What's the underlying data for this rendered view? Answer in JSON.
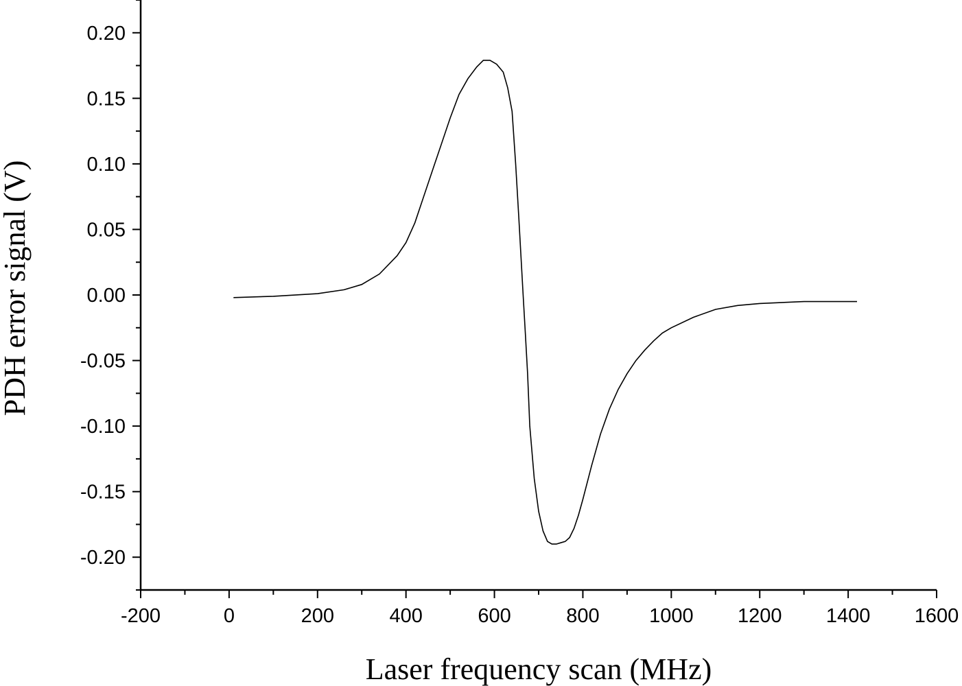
{
  "chart_data": {
    "type": "line",
    "title": "",
    "xlabel": "Laser frequency scan (MHz)",
    "ylabel": "PDH error signal (V)",
    "xlim": [
      -200,
      1600
    ],
    "ylim": [
      -0.225,
      0.225
    ],
    "x_ticks": [
      -200,
      0,
      200,
      400,
      600,
      800,
      1000,
      1200,
      1400,
      1600
    ],
    "x_tick_labels": [
      "-200",
      "0",
      "200",
      "400",
      "600",
      "800",
      "1000",
      "1200",
      "1400",
      "1600"
    ],
    "y_ticks": [
      -0.2,
      -0.15,
      -0.1,
      -0.05,
      0.0,
      0.05,
      0.1,
      0.15,
      0.2
    ],
    "y_tick_labels": [
      "-0.20",
      "-0.15",
      "-0.10",
      "-0.05",
      "0.00",
      "0.05",
      "0.10",
      "0.15",
      "0.20"
    ],
    "grid": false,
    "legend": false,
    "line_color": "#000000",
    "series": [
      {
        "x": [
          10,
          100,
          200,
          260,
          300,
          340,
          380,
          400,
          420,
          440,
          460,
          480,
          500,
          520,
          540,
          560,
          575,
          590,
          605,
          620,
          630,
          640,
          648,
          655,
          660,
          665,
          670,
          675,
          680,
          690,
          700,
          710,
          720,
          730,
          740,
          750,
          760,
          770,
          780,
          790,
          800,
          820,
          840,
          860,
          880,
          900,
          920,
          940,
          960,
          980,
          1000,
          1050,
          1100,
          1150,
          1200,
          1300,
          1420
        ],
        "y": [
          -0.002,
          -0.001,
          0.001,
          0.004,
          0.008,
          0.016,
          0.03,
          0.04,
          0.055,
          0.075,
          0.095,
          0.115,
          0.135,
          0.153,
          0.165,
          0.174,
          0.179,
          0.179,
          0.176,
          0.17,
          0.158,
          0.14,
          0.1,
          0.06,
          0.03,
          0.0,
          -0.03,
          -0.06,
          -0.1,
          -0.14,
          -0.165,
          -0.18,
          -0.188,
          -0.19,
          -0.19,
          -0.189,
          -0.188,
          -0.185,
          -0.178,
          -0.168,
          -0.156,
          -0.13,
          -0.106,
          -0.087,
          -0.072,
          -0.06,
          -0.05,
          -0.042,
          -0.035,
          -0.029,
          -0.025,
          -0.017,
          -0.011,
          -0.008,
          -0.0065,
          -0.005,
          -0.005
        ]
      }
    ]
  }
}
